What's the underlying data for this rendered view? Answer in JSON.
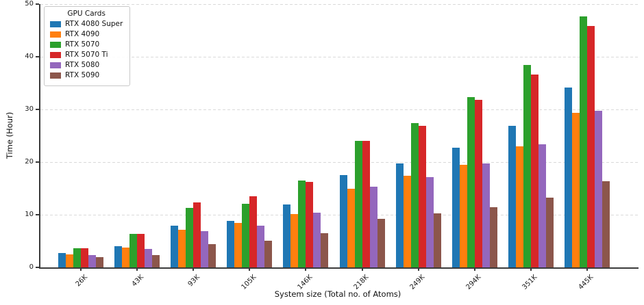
{
  "chart_data": {
    "type": "bar",
    "title": "",
    "xlabel": "System size (Total no. of Atoms)",
    "ylabel": "Time (Hour)",
    "legend_title": "GPU Cards",
    "legend_position": "upper left",
    "grid": true,
    "grid_style": "dashed",
    "ylim": [
      0,
      50
    ],
    "yticks": [
      0,
      10,
      20,
      30,
      40,
      50
    ],
    "categories": [
      "26K",
      "43K",
      "93K",
      "105K",
      "146K",
      "218K",
      "249K",
      "294K",
      "351K",
      "445K"
    ],
    "series": [
      {
        "name": "RTX 4080 Super",
        "color": "#1f77b4",
        "values": [
          2.7,
          4.0,
          7.9,
          8.8,
          11.9,
          17.5,
          19.8,
          22.7,
          26.9,
          34.1
        ]
      },
      {
        "name": "RTX 4090",
        "color": "#ff7f0e",
        "values": [
          2.5,
          3.8,
          7.2,
          8.5,
          10.1,
          14.9,
          17.4,
          19.5,
          23.0,
          29.4
        ]
      },
      {
        "name": "RTX 5070",
        "color": "#2ca02c",
        "values": [
          3.7,
          6.4,
          11.3,
          12.1,
          16.5,
          24.0,
          27.4,
          32.4,
          38.4,
          47.6
        ]
      },
      {
        "name": "RTX 5070 Ti",
        "color": "#d62728",
        "values": [
          3.7,
          6.4,
          12.3,
          13.5,
          16.2,
          24.0,
          26.9,
          31.8,
          36.6,
          45.8
        ]
      },
      {
        "name": "RTX 5080",
        "color": "#9467bd",
        "values": [
          2.4,
          3.5,
          6.9,
          7.9,
          10.4,
          15.3,
          17.1,
          19.8,
          23.4,
          29.8
        ]
      },
      {
        "name": "RTX 5090",
        "color": "#8c564b",
        "values": [
          1.9,
          2.3,
          4.4,
          5.1,
          6.5,
          9.2,
          10.3,
          11.4,
          13.3,
          16.4
        ]
      }
    ]
  },
  "axis_style": {
    "spine_color": "#3a3a3a",
    "gridline_color": "#d9d9d9",
    "tick_label_color": "#1a1a1a"
  }
}
